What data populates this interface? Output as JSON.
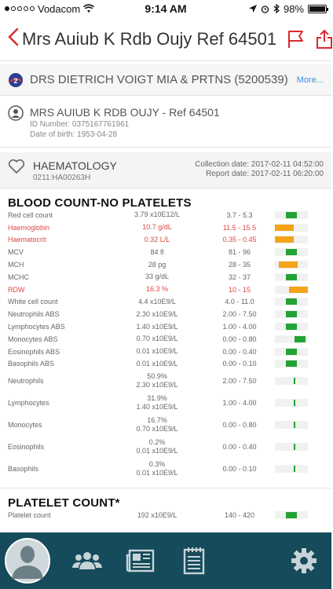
{
  "status_bar": {
    "carrier": "Vodacom",
    "time": "9:14 AM",
    "battery": "98%",
    "battery_level": 0.98
  },
  "nav": {
    "title": "Mrs Auiub K Rdb Oujy Ref 64501",
    "accent_color": "#d9292f"
  },
  "doctor": {
    "name": "DRS DIETRICH VOIGT MIA & PRTNS (5200539)",
    "more_label": "More..."
  },
  "patient": {
    "name": "MRS AUIUB K RDB OUJY - Ref 64501",
    "id_number": "ID Number: 0375167761961",
    "dob": "Date of birth: 1953-04-28"
  },
  "section": {
    "title": "HAEMATOLOGY",
    "code": "0211:HA00263H",
    "collection_date": "Collection date: 2017-02-11 04:52:00",
    "report_date": "Report date: 2017-02-11 06:20:00"
  },
  "groups": [
    {
      "title": "BLOOD COUNT-NO PLATELETS",
      "rows": [
        {
          "name": "Red cell count",
          "value": "3.79 x10E12/L",
          "range": "3.7 - 5.3",
          "status": "normal",
          "position": 0.5
        },
        {
          "name": "Haemoglobin",
          "value": "10.7 g/dL",
          "range": "11.5 - 15.5",
          "status": "low",
          "position": 0.25
        },
        {
          "name": "Haematocrit",
          "value": "0.32 L/L",
          "range": "0.35 - 0.45",
          "status": "low",
          "position": 0.2
        },
        {
          "name": "MCV",
          "value": "84 fl",
          "range": "81 - 96",
          "status": "normal",
          "position": 0.5
        },
        {
          "name": "MCH",
          "value": "28 pg",
          "range": "28 - 35",
          "status": "normal-low",
          "position": 0.4
        },
        {
          "name": "MCHC",
          "value": "33 g/dL",
          "range": "32 - 37",
          "status": "normal",
          "position": 0.5
        },
        {
          "name": "RDW",
          "value": "16.3 %",
          "range": "10 - 15",
          "status": "high",
          "position": 0.8
        },
        {
          "name": "White cell count",
          "value": "4.4 x10E9/L",
          "range": "4.0 - 11.0",
          "status": "normal",
          "position": 0.5
        },
        {
          "name": "Neutrophils ABS",
          "value": "2.30 x10E9/L",
          "range": "2.00 - 7.50",
          "status": "normal",
          "position": 0.5
        },
        {
          "name": "Lymphocytes ABS",
          "value": "1.40 x10E9/L",
          "range": "1.00 - 4.00",
          "status": "normal",
          "position": 0.5
        },
        {
          "name": "Monocytes ABS",
          "value": "0.70 x10E9/L",
          "range": "0.00 - 0.80",
          "status": "normal",
          "position": 0.75
        },
        {
          "name": "Eosinophils ABS",
          "value": "0.01 x10E9/L",
          "range": "0.00 - 0.40",
          "status": "normal",
          "position": 0.5
        },
        {
          "name": "Basophils ABS",
          "value": "0.01 x10E9/L",
          "range": "0.00 - 0.10",
          "status": "normal",
          "position": 0.5
        },
        {
          "name": "Neutrophils",
          "value": "50.9%",
          "value2": "2.30 x10E9/L",
          "range": "2.00 - 7.50",
          "status": "tick",
          "position": 0.6
        },
        {
          "name": "Lymphocytes",
          "value": "31.9%",
          "value2": "1.40 x10E9/L",
          "range": "1.00 - 4.00",
          "status": "tick",
          "position": 0.6
        },
        {
          "name": "Monocytes",
          "value": "16.7%",
          "value2": "0.70 x10E9/L",
          "range": "0.00 - 0.80",
          "status": "tick",
          "position": 0.6
        },
        {
          "name": "Eosinophils",
          "value": "0.2%",
          "value2": "0.01 x10E9/L",
          "range": "0.00 - 0.40",
          "status": "tick",
          "position": 0.6
        },
        {
          "name": "Basophils",
          "value": "0.3%",
          "value2": "0.01 x10E9/L",
          "range": "0.00 - 0.10",
          "status": "tick",
          "position": 0.6
        }
      ]
    },
    {
      "title": "PLATELET COUNT*",
      "rows": [
        {
          "name": "Platelet count",
          "value": "192 x10E9/L",
          "range": "140 - 420",
          "status": "normal",
          "position": 0.5
        }
      ]
    }
  ],
  "tab_bar": {
    "background": "#154b5a",
    "tabs": [
      "profile-icon",
      "contacts-icon",
      "news-icon",
      "notepad-icon",
      "settings-icon"
    ]
  }
}
